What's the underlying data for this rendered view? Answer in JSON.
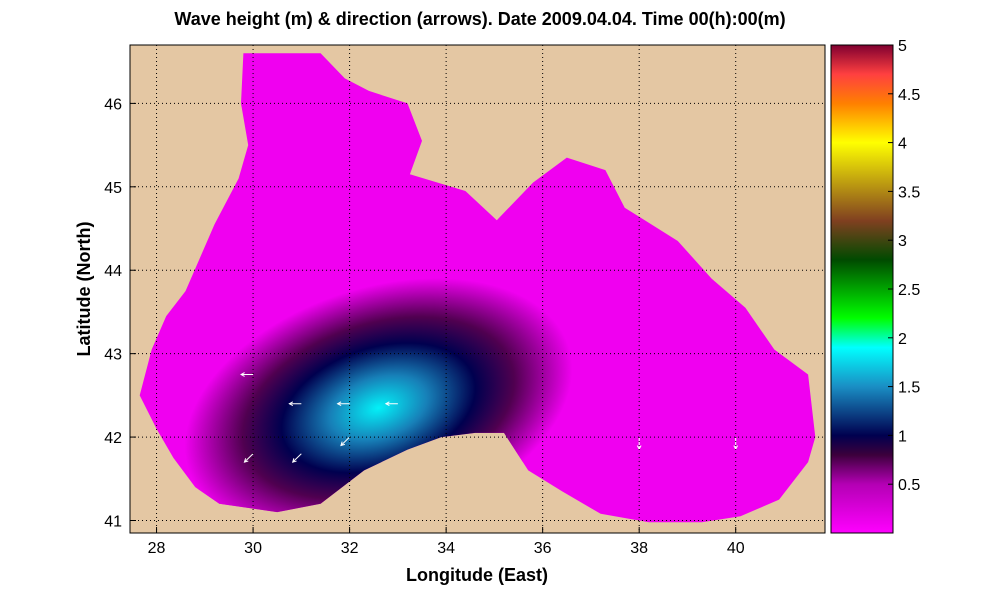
{
  "chart_data": {
    "type": "heatmap",
    "title": "Wave height (m) & direction (arrows). Date 2009.04.04. Time 00(h):00(m)",
    "xlabel": "Longitude (East)",
    "ylabel": "Latitude (North)",
    "xlim": [
      27.45,
      41.85
    ],
    "ylim": [
      40.85,
      46.7
    ],
    "xticks": [
      28,
      30,
      32,
      34,
      36,
      38,
      40
    ],
    "yticks": [
      41,
      42,
      43,
      44,
      45,
      46
    ],
    "grid": true,
    "colorbar": {
      "min": 0,
      "max": 5,
      "ticks": [
        0.5,
        1,
        1.5,
        2,
        2.5,
        3,
        3.5,
        4,
        4.5,
        5
      ],
      "tick_labels": [
        "0.5",
        "1",
        "1.5",
        "2",
        "2.5",
        "3",
        "3.5",
        "4",
        "4.5",
        "5"
      ],
      "stops": [
        {
          "v": 0.0,
          "c": "#ff00ff"
        },
        {
          "v": 0.5,
          "c": "#b400b4"
        },
        {
          "v": 0.8,
          "c": "#3c003c"
        },
        {
          "v": 1.0,
          "c": "#00004f"
        },
        {
          "v": 1.5,
          "c": "#1a8ec4"
        },
        {
          "v": 1.9,
          "c": "#00ffff"
        },
        {
          "v": 2.2,
          "c": "#00ff00"
        },
        {
          "v": 2.8,
          "c": "#004a00"
        },
        {
          "v": 3.2,
          "c": "#804020"
        },
        {
          "v": 4.0,
          "c": "#ffff00"
        },
        {
          "v": 4.4,
          "c": "#ff8000"
        },
        {
          "v": 4.7,
          "c": "#ff4040"
        },
        {
          "v": 5.0,
          "c": "#800030"
        }
      ]
    },
    "land_color": "#e4c7a3",
    "sea_outline": [
      [
        29.8,
        46.6
      ],
      [
        31.4,
        46.6
      ],
      [
        31.9,
        46.3
      ],
      [
        32.4,
        46.15
      ],
      [
        33.2,
        46.0
      ],
      [
        33.5,
        45.55
      ],
      [
        33.25,
        45.15
      ],
      [
        34.4,
        44.95
      ],
      [
        35.05,
        44.6
      ],
      [
        35.8,
        45.05
      ],
      [
        36.5,
        45.35
      ],
      [
        37.3,
        45.2
      ],
      [
        37.7,
        44.75
      ],
      [
        38.8,
        44.35
      ],
      [
        39.5,
        43.9
      ],
      [
        40.2,
        43.55
      ],
      [
        40.8,
        43.05
      ],
      [
        41.5,
        42.75
      ],
      [
        41.65,
        42.0
      ],
      [
        41.5,
        41.7
      ],
      [
        40.9,
        41.25
      ],
      [
        40.1,
        41.05
      ],
      [
        39.3,
        40.98
      ],
      [
        38.2,
        40.98
      ],
      [
        37.2,
        41.08
      ],
      [
        36.4,
        41.35
      ],
      [
        35.7,
        41.6
      ],
      [
        35.2,
        42.05
      ],
      [
        34.6,
        42.05
      ],
      [
        33.9,
        42.0
      ],
      [
        33.2,
        41.85
      ],
      [
        32.3,
        41.6
      ],
      [
        31.4,
        41.2
      ],
      [
        30.5,
        41.1
      ],
      [
        29.3,
        41.2
      ],
      [
        28.8,
        41.4
      ],
      [
        28.35,
        41.75
      ],
      [
        28.0,
        42.1
      ],
      [
        27.65,
        42.5
      ],
      [
        27.9,
        43.05
      ],
      [
        28.2,
        43.45
      ],
      [
        28.6,
        43.75
      ],
      [
        29.2,
        44.55
      ],
      [
        29.7,
        45.1
      ],
      [
        29.9,
        45.5
      ],
      [
        29.75,
        46.0
      ]
    ],
    "wave_peak": {
      "lon": 32.6,
      "lat": 42.35,
      "height": 1.85
    },
    "background_height": 0.1,
    "arrows": [
      {
        "lon": 30.0,
        "lat": 42.75,
        "dir": "W"
      },
      {
        "lon": 31.0,
        "lat": 42.4,
        "dir": "W"
      },
      {
        "lon": 32.0,
        "lat": 42.4,
        "dir": "W"
      },
      {
        "lon": 33.0,
        "lat": 42.4,
        "dir": "W"
      },
      {
        "lon": 30.0,
        "lat": 41.8,
        "dir": "SW"
      },
      {
        "lon": 31.0,
        "lat": 41.8,
        "dir": "SW"
      },
      {
        "lon": 32.0,
        "lat": 42.0,
        "dir": "SW"
      },
      {
        "lon": 38.0,
        "lat": 42.0,
        "dir": "S"
      },
      {
        "lon": 40.0,
        "lat": 42.0,
        "dir": "S"
      }
    ]
  }
}
